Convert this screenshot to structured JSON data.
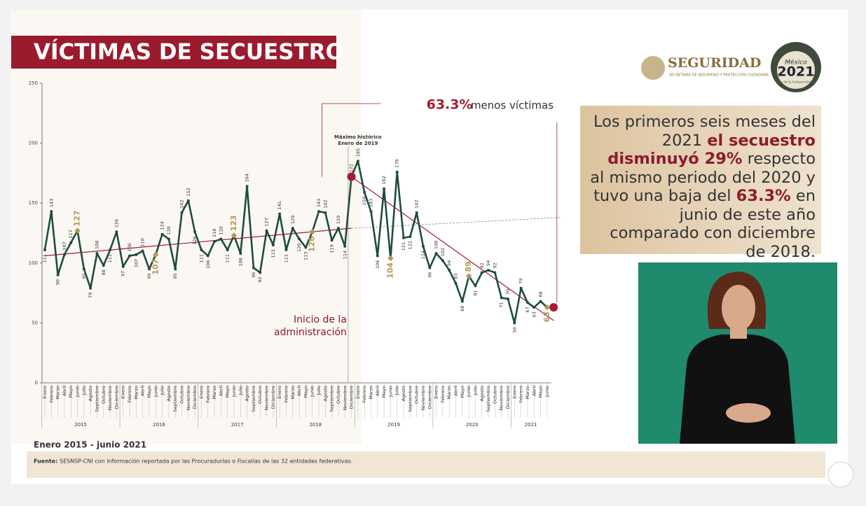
{
  "header": {
    "title": "VÍCTIMAS DE SECUESTRO"
  },
  "logos": {
    "seguridad": "SEGURIDAD",
    "seguridad_sub": "SECRETARÍA DE SEGURIDAD Y PROTECCIÓN CIUDADANA",
    "mexico": "México",
    "year": "2021",
    "year_sub": "Año de la Independencia"
  },
  "chart_data": {
    "type": "line",
    "color": "#1f4d3a",
    "highlight_category": "Junio",
    "highlight_color": "#b5975a",
    "marker_color": "#a51c30",
    "ylim": [
      0,
      250
    ],
    "yticks": [
      0,
      50,
      100,
      150,
      200,
      250
    ],
    "categories": [
      "Enero",
      "Febrero",
      "Marzo",
      "Abril",
      "Mayo",
      "Junio",
      "Julio",
      "Agosto",
      "Septiembre",
      "Octubre",
      "Noviembre",
      "Diciembre",
      "Enero",
      "Febrero",
      "Marzo",
      "Abril",
      "Mayo",
      "Junio",
      "Julio",
      "Agosto",
      "Septiembre",
      "Octubre",
      "Noviembre",
      "Diciembre",
      "Enero",
      "Febrero",
      "Marzo",
      "Abril",
      "Mayo",
      "Junio",
      "Julio",
      "Agosto",
      "Septiembre",
      "Octubre",
      "Noviembre",
      "Diciembre",
      "Enero",
      "Febrero",
      "Marzo",
      "Abril",
      "Mayo",
      "Junio",
      "Julio",
      "Agosto",
      "Septiembre",
      "Octubre",
      "Noviembre",
      "Diciembre",
      "Enero",
      "Febrero",
      "Marzo",
      "Abril",
      "Mayo",
      "Junio",
      "Julio",
      "Agosto",
      "Septiembre",
      "Octubre",
      "Noviembre",
      "Diciembre",
      "Enero",
      "Febrero",
      "Marzo",
      "Abril",
      "Mayo",
      "Junio",
      "Julio",
      "Agosto",
      "Septiembre",
      "Octubre",
      "Noviembre",
      "Diciembre",
      "Enero",
      "Febrero",
      "Marzo",
      "Abril",
      "Mayo",
      "Junio"
    ],
    "years": [
      "2015",
      "2016",
      "2017",
      "2018",
      "2019",
      "2020",
      "2021"
    ],
    "values": [
      111,
      143,
      90,
      107,
      117,
      127,
      95,
      79,
      108,
      98,
      111,
      126,
      97,
      106,
      107,
      110,
      95,
      107,
      124,
      120,
      95,
      142,
      152,
      126,
      111,
      106,
      118,
      120,
      111,
      123,
      108,
      164,
      96,
      92,
      127,
      115,
      141,
      111,
      129,
      120,
      113,
      126,
      143,
      142,
      119,
      129,
      114,
      172,
      185,
      159,
      143,
      106,
      162,
      104,
      176,
      121,
      122,
      142,
      114,
      96,
      108,
      102,
      94,
      83,
      68,
      89,
      81,
      92,
      94,
      92,
      71,
      70,
      50,
      79,
      67,
      63,
      68,
      63
    ],
    "markers": [
      {
        "x": 47,
        "value": 172
      },
      {
        "x": 78,
        "value": 63
      }
    ],
    "trend_lines": [
      {
        "x": [
          0,
          47
        ],
        "values": [
          106,
          129
        ],
        "dashed": false
      },
      {
        "x": [
          47,
          79
        ],
        "values": [
          129,
          138
        ],
        "dashed": true
      },
      {
        "x": [
          47,
          78
        ],
        "values": [
          172,
          52
        ],
        "dashed": false
      }
    ],
    "reduction_pct": "63.3%",
    "reduction_text": "menos víctimas",
    "peak_note": [
      "Máximo histórico",
      "Enero de 2019"
    ],
    "start_note": [
      "Inicio de la",
      "administración"
    ]
  },
  "period": "Enero 2015 - junio 2021",
  "source": {
    "label": "Fuente:",
    "text": "SESNSP-CNI con información reportada por las Procuradurías o Fiscalías de las  32 entidades federativas."
  },
  "summary": {
    "segments": [
      {
        "text": "Los primeros seis meses del 2021 ",
        "bold": false
      },
      {
        "text": "el secuestro disminuyó 29%",
        "bold": true
      },
      {
        "text": " respecto al mismo periodo del 2020 y tuvo una baja del ",
        "bold": false
      },
      {
        "text": "63.3%",
        "bold": true
      },
      {
        "text": " en junio de este año comparado con diciembre de 2018.",
        "bold": false
      }
    ]
  }
}
